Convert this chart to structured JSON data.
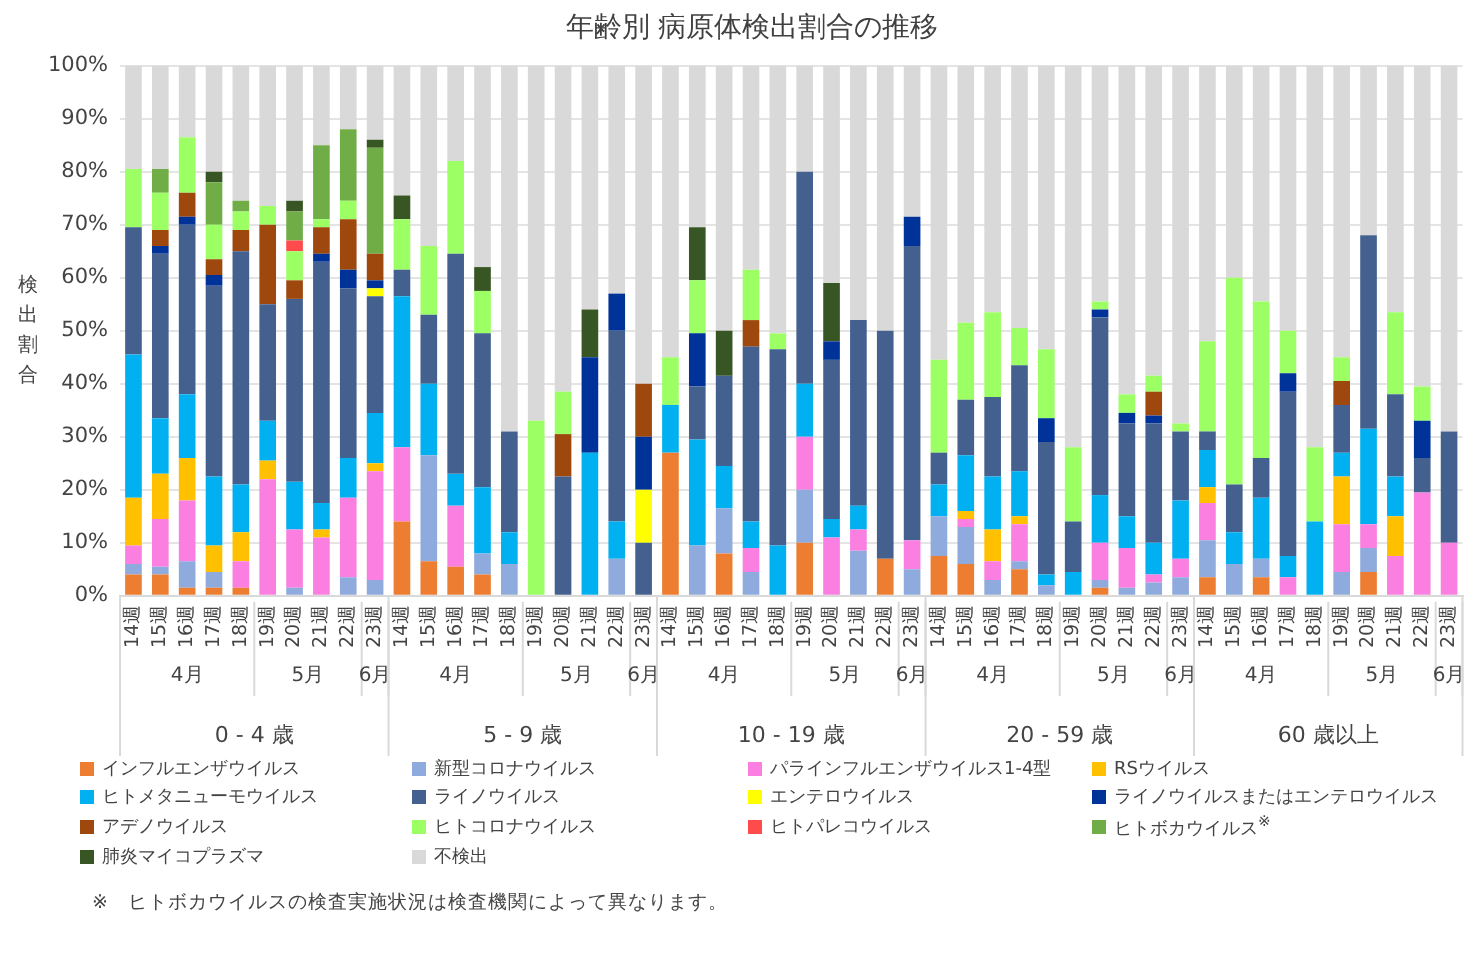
{
  "chart_data": {
    "type": "bar",
    "stacked": true,
    "title": "年齢別 病原体検出割合の推移",
    "ylabel": "検出割合",
    "categories": [
      "14週",
      "15週",
      "16週",
      "17週",
      "18週",
      "19週",
      "20週",
      "21週",
      "22週",
      "23週",
      "14週",
      "15週",
      "16週",
      "17週",
      "18週",
      "19週",
      "20週",
      "21週",
      "22週",
      "23週",
      "14週",
      "15週",
      "16週",
      "17週",
      "18週",
      "19週",
      "20週",
      "21週",
      "22週",
      "23週",
      "14週",
      "15週",
      "16週",
      "17週",
      "18週",
      "19週",
      "20週",
      "21週",
      "22週",
      "23週",
      "14週",
      "15週",
      "16週",
      "17週",
      "18週",
      "19週",
      "20週",
      "21週",
      "22週",
      "23週"
    ],
    "ylim": [
      0,
      100
    ],
    "yticks": [
      {
        "value": 0,
        "label": "0%"
      },
      {
        "value": 10,
        "label": "10%"
      },
      {
        "value": 20,
        "label": "20%"
      },
      {
        "value": 30,
        "label": "30%"
      },
      {
        "value": 40,
        "label": "40%"
      },
      {
        "value": 50,
        "label": "50%"
      },
      {
        "value": 60,
        "label": "60%"
      },
      {
        "value": 70,
        "label": "70%"
      },
      {
        "value": 80,
        "label": "80%"
      },
      {
        "value": 90,
        "label": "90%"
      },
      {
        "value": 100,
        "label": "100%"
      }
    ],
    "grid": "y",
    "legend": "bottom",
    "series": [
      {
        "name": "インフルエンザウイルス",
        "color": "#ed7d31",
        "values": [
          4,
          4,
          1.5,
          1.5,
          1.5,
          null,
          null,
          null,
          null,
          null,
          14,
          6.5,
          5.5,
          4,
          null,
          null,
          null,
          null,
          null,
          null,
          27,
          null,
          8,
          null,
          null,
          10,
          null,
          null,
          7,
          null,
          7.5,
          6,
          null,
          5,
          null,
          null,
          1.5,
          null,
          null,
          null,
          3.5,
          null,
          3.5,
          null,
          null,
          null,
          4.5,
          null,
          null,
          null
        ]
      },
      {
        "name": "新型コロナウイルス",
        "color": "#8faadc",
        "values": [
          2,
          1.5,
          5,
          3,
          null,
          null,
          1.5,
          null,
          3.5,
          3,
          null,
          20,
          null,
          4,
          6,
          null,
          null,
          null,
          7,
          null,
          null,
          9.5,
          8.5,
          4.5,
          null,
          10,
          null,
          8.5,
          null,
          5,
          7.5,
          7,
          3,
          1.5,
          2,
          null,
          1.5,
          1.5,
          2.5,
          3.5,
          7,
          6,
          3.5,
          null,
          null,
          4.5,
          4.5,
          null,
          null,
          null
        ]
      },
      {
        "name": "パラインフルエンザウイルス1-4型",
        "color": "#fa7fe0",
        "values": [
          3.5,
          9,
          11.5,
          null,
          5,
          22,
          11,
          11,
          15,
          20.5,
          14,
          null,
          11.5,
          null,
          null,
          null,
          null,
          null,
          null,
          null,
          null,
          null,
          null,
          4.5,
          null,
          10,
          11,
          4,
          null,
          5.5,
          null,
          1.5,
          3.5,
          7,
          null,
          null,
          7,
          7.5,
          1.5,
          3.5,
          7,
          null,
          null,
          3.5,
          null,
          9,
          4.5,
          7.5,
          19.5,
          10
        ]
      },
      {
        "name": "RSウイルス",
        "color": "#ffc000",
        "values": [
          9,
          8.5,
          8,
          5,
          5.5,
          3.5,
          null,
          1.5,
          null,
          1.5,
          null,
          null,
          null,
          null,
          null,
          null,
          null,
          null,
          null,
          null,
          null,
          null,
          null,
          null,
          null,
          null,
          null,
          null,
          null,
          null,
          null,
          1.5,
          6,
          1.5,
          null,
          null,
          null,
          null,
          null,
          null,
          3,
          null,
          null,
          null,
          null,
          9,
          null,
          7.5,
          null,
          null
        ]
      },
      {
        "name": "ヒトメタニューモウイルス",
        "color": "#00b0f0",
        "values": [
          27,
          10.5,
          12,
          13,
          9,
          7.5,
          9,
          5,
          7.5,
          9.5,
          28.5,
          13.5,
          6,
          12.5,
          6,
          null,
          null,
          27,
          7,
          null,
          9,
          20,
          8,
          5,
          9.5,
          10,
          3.5,
          4.5,
          null,
          null,
          6,
          10.5,
          10,
          8.5,
          2,
          4.5,
          9,
          6,
          6,
          11,
          7,
          6,
          11.5,
          4,
          14,
          4.5,
          18,
          7.5,
          null,
          null
        ]
      },
      {
        "name": "ライノウイルス",
        "color": "#44608f",
        "values": [
          24,
          31,
          32,
          36,
          44,
          22,
          34.5,
          45.5,
          32,
          22,
          5,
          13,
          41.5,
          29,
          19,
          null,
          22.5,
          null,
          36,
          10,
          null,
          10,
          17,
          33,
          37,
          40,
          30,
          35,
          43,
          55.5,
          6,
          10.5,
          15,
          20,
          25,
          9.5,
          33.5,
          17.5,
          22.5,
          13,
          3.5,
          9,
          7.5,
          31,
          null,
          9,
          36.5,
          15.5,
          6.5,
          21
        ]
      },
      {
        "name": "エンテロウイルス",
        "color": "#ffff00",
        "values": [
          null,
          null,
          null,
          null,
          null,
          null,
          null,
          null,
          null,
          1.5,
          null,
          null,
          null,
          null,
          null,
          null,
          null,
          null,
          null,
          10,
          null,
          null,
          null,
          null,
          null,
          null,
          null,
          null,
          null,
          null,
          null,
          null,
          null,
          null,
          null,
          null,
          null,
          null,
          null,
          null,
          null,
          null,
          null,
          null,
          null,
          null,
          null,
          null,
          null,
          null
        ]
      },
      {
        "name": "ライノウイルスまたはエンテロウイルス",
        "color": "#00339a",
        "values": [
          null,
          1.5,
          1.5,
          2,
          null,
          null,
          null,
          1.5,
          3.5,
          1.5,
          null,
          null,
          null,
          null,
          null,
          null,
          null,
          18,
          7,
          10,
          null,
          10,
          null,
          null,
          null,
          null,
          3.5,
          null,
          null,
          5.5,
          null,
          null,
          null,
          null,
          4.5,
          null,
          1.5,
          2,
          1.5,
          null,
          null,
          null,
          null,
          3.5,
          null,
          null,
          null,
          null,
          7,
          null
        ]
      },
      {
        "name": "アデノウイルス",
        "color": "#9e480e",
        "values": [
          null,
          3,
          4.5,
          3,
          4,
          15,
          3.5,
          5,
          9.5,
          5,
          null,
          null,
          null,
          null,
          null,
          null,
          8,
          null,
          null,
          10,
          null,
          null,
          null,
          5,
          null,
          null,
          null,
          null,
          null,
          null,
          null,
          null,
          null,
          null,
          null,
          null,
          null,
          null,
          4.5,
          null,
          null,
          null,
          null,
          null,
          null,
          4.5,
          null,
          null,
          null,
          null
        ]
      },
      {
        "name": "ヒトコロナウイルス",
        "color": "#9cff63",
        "values": [
          11,
          7,
          10.5,
          6.5,
          3.5,
          3.5,
          5.5,
          1.5,
          3.5,
          null,
          9.5,
          13,
          17.5,
          8,
          null,
          33,
          8,
          null,
          null,
          null,
          9,
          10,
          null,
          9.5,
          3,
          null,
          null,
          null,
          null,
          null,
          17.5,
          14.5,
          16,
          7,
          13,
          14,
          1.5,
          3.5,
          3,
          1.5,
          17,
          39,
          29.5,
          8,
          14,
          4.5,
          null,
          15.5,
          6.5,
          null
        ]
      },
      {
        "name": "ヒトパレコウイルス",
        "color": "#ff4b4b",
        "values": [
          null,
          null,
          null,
          null,
          null,
          null,
          2,
          null,
          null,
          null,
          null,
          null,
          null,
          null,
          null,
          null,
          null,
          null,
          null,
          null,
          null,
          null,
          null,
          null,
          null,
          null,
          null,
          null,
          null,
          null,
          null,
          null,
          null,
          null,
          null,
          null,
          null,
          null,
          null,
          null,
          null,
          null,
          null,
          null,
          null,
          null,
          null,
          null,
          null,
          null
        ]
      },
      {
        "name": "ヒトボカウイルス$^{※}$",
        "color": "#70ad47",
        "values": [
          null,
          4.5,
          null,
          8,
          2,
          null,
          5.5,
          14,
          13.5,
          20,
          null,
          null,
          null,
          null,
          null,
          null,
          null,
          null,
          null,
          null,
          null,
          null,
          null,
          null,
          null,
          null,
          null,
          null,
          null,
          null,
          null,
          null,
          null,
          null,
          null,
          null,
          null,
          null,
          null,
          null,
          null,
          null,
          null,
          null,
          null,
          null,
          null,
          null,
          null,
          null
        ]
      },
      {
        "name": "肺炎マイコプラズマ",
        "color": "#375623",
        "values": [
          null,
          null,
          null,
          2,
          null,
          null,
          2,
          null,
          null,
          1.5,
          4.5,
          null,
          null,
          4.5,
          null,
          null,
          null,
          9,
          null,
          null,
          null,
          10,
          8.5,
          null,
          null,
          null,
          11,
          null,
          null,
          null,
          null,
          null,
          null,
          null,
          null,
          null,
          null,
          null,
          null,
          null,
          null,
          null,
          null,
          null,
          null,
          null,
          null,
          null,
          null,
          null
        ]
      },
      {
        "name": "不検出",
        "color": "#d9d9d9",
        "values": [
          19.5,
          19.5,
          13.5,
          20,
          25.5,
          26.5,
          25.5,
          15,
          12,
          14,
          24.5,
          34,
          18,
          38,
          69,
          67,
          61.5,
          46,
          43,
          60,
          55,
          30.5,
          50,
          38.5,
          50.5,
          20,
          41,
          48,
          50,
          28.5,
          55.5,
          48.5,
          46.5,
          49.5,
          53.5,
          72,
          44.5,
          62,
          58.5,
          67.5,
          52,
          40,
          44.5,
          50,
          72,
          55,
          32,
          46.5,
          60.5,
          69
        ]
      }
    ],
    "annotations": [
      "4月",
      "5月",
      "6月",
      "4月",
      "5月",
      "6月",
      "4月",
      "5月",
      "6月",
      "4月",
      "5月",
      "6月",
      "4月",
      "5月",
      "6月",
      "0 - 4 歳",
      "5 - 9 歳",
      "10 - 19 歳",
      "20 - 59 歳",
      "60 歳以上",
      "※　ヒトボカウイルスの検査実施状況は検査機関によって異なります。"
    ]
  }
}
